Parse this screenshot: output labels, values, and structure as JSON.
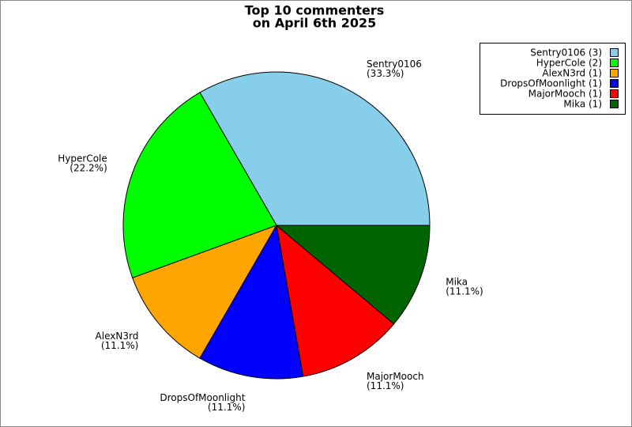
{
  "chart_data": {
    "type": "pie",
    "title": "Top 10 commenters",
    "subtitle": "on April 6th 2025",
    "categories": [
      "Sentry0106",
      "HyperCole",
      "AlexN3rd",
      "DropsOfMoonlight",
      "MajorMooch",
      "Mika"
    ],
    "values": [
      3,
      2,
      1,
      1,
      1,
      1
    ],
    "percent_labels": [
      "(33.3%)",
      "(22.2%)",
      "(11.1%)",
      "(11.1%)",
      "(11.1%)",
      "(11.1%)"
    ],
    "legend_labels": [
      "Sentry0106 (3)",
      "HyperCole (2)",
      "AlexN3rd (1)",
      "DropsOfMoonlight (1)",
      "MajorMooch (1)",
      "Mika (1)"
    ],
    "colors": [
      "#87ceeb",
      "#00ff00",
      "#ffa500",
      "#0000ff",
      "#ff0000",
      "#006400"
    ],
    "legend": "upper right"
  }
}
